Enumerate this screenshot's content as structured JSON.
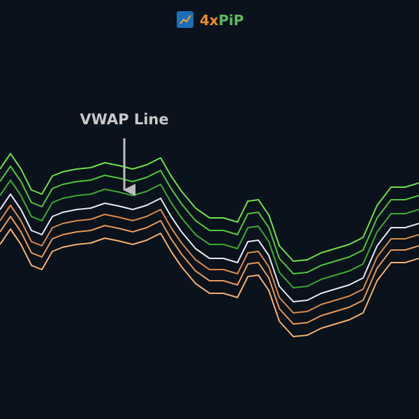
{
  "logo": {
    "text_a": "4x",
    "text_b": "PiP"
  },
  "annotation": {
    "label": "VWAP Line"
  }
}
